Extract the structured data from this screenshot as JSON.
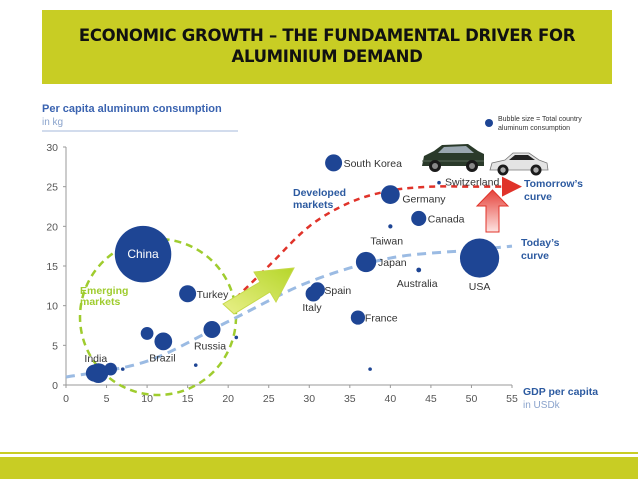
{
  "slide": {
    "title_line1": "ECONOMIC GROWTH – THE FUNDAMENTAL DRIVER FOR",
    "title_line2": "ALUMINIUM DEMAND",
    "accent_color": "#c8cd24"
  },
  "chart_data": {
    "type": "scatter",
    "subtype": "bubble",
    "ylabel": "Per capita aluminum consumption",
    "ylabel_unit": "in kg",
    "xlabel": "GDP per capita",
    "xlabel_unit": "in USDk",
    "xlim": [
      0,
      55
    ],
    "ylim": [
      0,
      30
    ],
    "xticks": [
      0,
      5,
      10,
      15,
      20,
      25,
      30,
      35,
      40,
      45,
      50,
      55
    ],
    "yticks": [
      0,
      5,
      10,
      15,
      20,
      25,
      30
    ],
    "grid": false,
    "legend_line1": "Bubble size = Total country",
    "legend_line2": "aluminum consumption",
    "point_color": "#1e4594",
    "points": [
      {
        "label": "China",
        "x": 9.5,
        "y": 16.5,
        "size": 10
      },
      {
        "label": "South Korea",
        "x": 33,
        "y": 28,
        "size": 2
      },
      {
        "label": "Germany",
        "x": 40,
        "y": 24,
        "size": 2.5
      },
      {
        "label": "Switzerland",
        "x": 46,
        "y": 25.5,
        "size": 0.6
      },
      {
        "label": "Canada",
        "x": 43.5,
        "y": 21,
        "size": 1.5
      },
      {
        "label": "Taiwan",
        "x": 40,
        "y": 20,
        "size": 0.8
      },
      {
        "label": "Japan",
        "x": 37,
        "y": 15.5,
        "size": 3
      },
      {
        "label": "Australia",
        "x": 43.5,
        "y": 14.5,
        "size": 0.9
      },
      {
        "label": "USA",
        "x": 51,
        "y": 16,
        "size": 4.5
      },
      {
        "label": "Turkey",
        "x": 15,
        "y": 11.5,
        "size": 2
      },
      {
        "label": "Spain",
        "x": 31,
        "y": 12,
        "size": 1.5
      },
      {
        "label": "Italy",
        "x": 30.5,
        "y": 11.5,
        "size": 1.6
      },
      {
        "label": "France",
        "x": 36,
        "y": 8.5,
        "size": 1.3
      },
      {
        "label": "Russia",
        "x": 18,
        "y": 7,
        "size": 2
      },
      {
        "label": "Brazil",
        "x": 12,
        "y": 5.5,
        "size": 2.2
      },
      {
        "label": "India",
        "x": 4,
        "y": 1.5,
        "size": 2.8
      },
      {
        "label": "",
        "x": 3.5,
        "y": 1.5,
        "size": 2
      },
      {
        "label": "",
        "x": 5.5,
        "y": 2,
        "size": 1
      },
      {
        "label": "",
        "x": 7,
        "y": 2,
        "size": 0.6
      },
      {
        "label": "",
        "x": 10,
        "y": 6.5,
        "size": 1
      },
      {
        "label": "",
        "x": 16,
        "y": 2.5,
        "size": 0.6
      },
      {
        "label": "",
        "x": 21,
        "y": 6,
        "size": 0.6
      },
      {
        "label": "",
        "x": 37.5,
        "y": 2,
        "size": 0.5
      }
    ],
    "annotations": {
      "developed": [
        "Developed",
        "markets"
      ],
      "emerging": [
        "Emerging",
        "markets"
      ],
      "tomorrow": [
        "Tomorrow’s",
        "curve"
      ],
      "today": [
        "Today’s",
        "curve"
      ]
    },
    "curves": {
      "today": {
        "color": "#9bbbe3",
        "points": [
          [
            0,
            1
          ],
          [
            10,
            3
          ],
          [
            20,
            8
          ],
          [
            30,
            13
          ],
          [
            40,
            16
          ],
          [
            50,
            17
          ],
          [
            55,
            17.5
          ]
        ]
      },
      "tomorrow": {
        "color": "#e0332a",
        "points": [
          [
            20,
            10
          ],
          [
            25,
            15
          ],
          [
            30,
            20
          ],
          [
            35,
            23
          ],
          [
            40,
            24.5
          ],
          [
            45,
            25
          ],
          [
            50,
            25
          ],
          [
            55,
            25
          ]
        ]
      }
    },
    "emerging_circle_color": "#9fcc2e"
  }
}
